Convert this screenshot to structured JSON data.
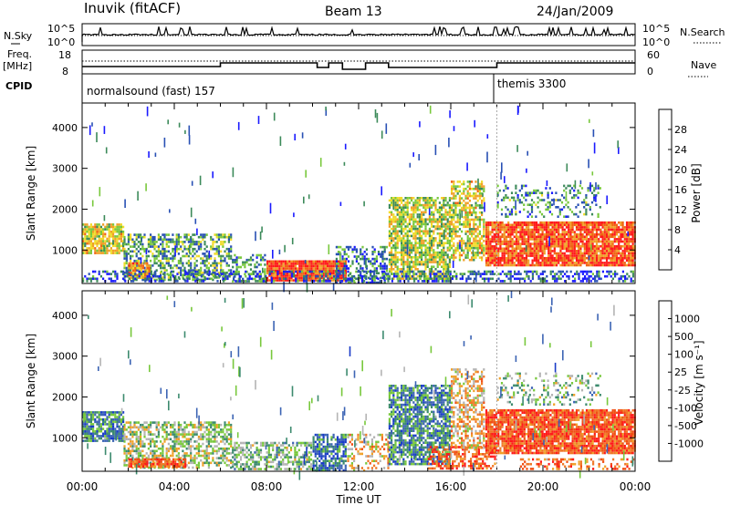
{
  "header": {
    "station": "Inuvik (fitACF)",
    "beam": "Beam 13",
    "date": "24/Jan/2009"
  },
  "top_panels": {
    "nsky_label": "N.Sky",
    "nsky_ticks": [
      "10^5",
      "10^0"
    ],
    "nsearch_label": "N.Search",
    "freq_label_line1": "Freq.",
    "freq_label_line2": "[MHz]",
    "freq_ticks": [
      "18",
      "8"
    ],
    "nave_label": "Nave",
    "nave_ticks": [
      "60",
      "0"
    ],
    "cpid_label": "CPID",
    "cpid_segments": [
      {
        "name": "normalsound (fast) 157",
        "start_hour": 0,
        "end_hour": 18
      },
      {
        "name": "themis 3300",
        "start_hour": 18,
        "end_hour": 24
      }
    ]
  },
  "chart_data": [
    {
      "type": "heatmap",
      "panel": "power",
      "title": "",
      "xlabel": "Time UT",
      "ylabel": "Slant Range [km]",
      "xlim": [
        0,
        24
      ],
      "ylim": [
        180,
        4600
      ],
      "x_ticks": [
        "00:00",
        "04:00",
        "08:00",
        "12:00",
        "16:00",
        "20:00",
        "00:00"
      ],
      "y_ticks": [
        "1000",
        "2000",
        "3000",
        "4000"
      ],
      "colorbar_label": "Power [dB]",
      "colorbar_ticks": [
        "4",
        "8",
        "12",
        "16",
        "20",
        "24",
        "28"
      ],
      "colorbar_colors": [
        "#1a1aff",
        "#2850b4",
        "#3c8a5a",
        "#78c83c",
        "#f0dc28",
        "#f0a028",
        "#f06414",
        "#ff1a1a"
      ],
      "regions": [
        {
          "t0": 0.0,
          "t1": 1.8,
          "r0": 900,
          "r1": 1650,
          "intensity": 0.55,
          "density": 0.85
        },
        {
          "t0": 1.8,
          "t1": 6.5,
          "r0": 250,
          "r1": 1400,
          "intensity": 0.35,
          "density": 0.55
        },
        {
          "t0": 2.0,
          "t1": 3.0,
          "r0": 300,
          "r1": 700,
          "intensity": 0.7,
          "density": 0.8
        },
        {
          "t0": 6.5,
          "t1": 8.0,
          "r0": 200,
          "r1": 900,
          "intensity": 0.3,
          "density": 0.5
        },
        {
          "t0": 8.0,
          "t1": 11.5,
          "r0": 200,
          "r1": 750,
          "intensity": 0.88,
          "density": 0.95
        },
        {
          "t0": 11.0,
          "t1": 13.3,
          "r0": 200,
          "r1": 1100,
          "intensity": 0.25,
          "density": 0.4
        },
        {
          "t0": 13.3,
          "t1": 16.0,
          "r0": 250,
          "r1": 2300,
          "intensity": 0.5,
          "density": 0.75
        },
        {
          "t0": 16.0,
          "t1": 17.5,
          "r0": 700,
          "r1": 2700,
          "intensity": 0.55,
          "density": 0.65
        },
        {
          "t0": 17.5,
          "t1": 24.0,
          "r0": 600,
          "r1": 1700,
          "intensity": 0.85,
          "density": 0.9
        },
        {
          "t0": 18.0,
          "t1": 22.5,
          "r0": 1800,
          "r1": 2600,
          "intensity": 0.3,
          "density": 0.3
        },
        {
          "t0": 0.0,
          "t1": 24.0,
          "r0": 200,
          "r1": 500,
          "intensity": 0.2,
          "density": 0.45
        }
      ]
    },
    {
      "type": "heatmap",
      "panel": "velocity",
      "title": "",
      "xlabel": "Time UT",
      "ylabel": "Slant Range [km]",
      "xlim": [
        0,
        24
      ],
      "ylim": [
        180,
        4600
      ],
      "x_ticks": [
        "00:00",
        "04:00",
        "08:00",
        "12:00",
        "16:00",
        "20:00",
        "00:00"
      ],
      "y_ticks": [
        "1000",
        "2000",
        "3000",
        "4000"
      ],
      "colorbar_label": "Velocity [m s⁻¹]",
      "colorbar_ticks": [
        "1000",
        "500",
        "100",
        "25",
        "-25",
        "-100",
        "-500",
        "-1000"
      ],
      "colorbar_colors": [
        "#1a3cc8",
        "#3c64b4",
        "#3c8a6e",
        "#78c83c",
        "#b4b4b4",
        "#f0a028",
        "#f07828",
        "#f05014",
        "#ff1a1a"
      ],
      "regions": [
        {
          "t0": 0.0,
          "t1": 1.8,
          "r0": 900,
          "r1": 1650,
          "v": 0.25,
          "density": 0.85
        },
        {
          "t0": 1.8,
          "t1": 6.5,
          "r0": 250,
          "r1": 1400,
          "v": 0.45,
          "density": 0.55
        },
        {
          "t0": 2.0,
          "t1": 4.5,
          "r0": 250,
          "r1": 500,
          "v": 0.8,
          "density": 0.8
        },
        {
          "t0": 6.5,
          "t1": 10.0,
          "r0": 200,
          "r1": 900,
          "v": 0.4,
          "density": 0.6
        },
        {
          "t0": 10.0,
          "t1": 11.5,
          "r0": 200,
          "r1": 1100,
          "v": 0.2,
          "density": 0.7
        },
        {
          "t0": 11.5,
          "t1": 13.3,
          "r0": 200,
          "r1": 1100,
          "v": 0.6,
          "density": 0.4
        },
        {
          "t0": 13.3,
          "t1": 16.0,
          "r0": 300,
          "r1": 2300,
          "v": 0.25,
          "density": 0.75
        },
        {
          "t0": 15.0,
          "t1": 18.0,
          "r0": 200,
          "r1": 800,
          "v": 0.8,
          "density": 0.6
        },
        {
          "t0": 16.0,
          "t1": 17.5,
          "r0": 700,
          "r1": 2700,
          "v": 0.6,
          "density": 0.55
        },
        {
          "t0": 17.5,
          "t1": 24.0,
          "r0": 600,
          "r1": 1700,
          "v": 0.82,
          "density": 0.9
        },
        {
          "t0": 18.0,
          "t1": 22.5,
          "r0": 1800,
          "r1": 2600,
          "v": 0.4,
          "density": 0.3
        },
        {
          "t0": 19.0,
          "t1": 24.0,
          "r0": 200,
          "r1": 500,
          "v": 0.75,
          "density": 0.35
        }
      ]
    }
  ]
}
